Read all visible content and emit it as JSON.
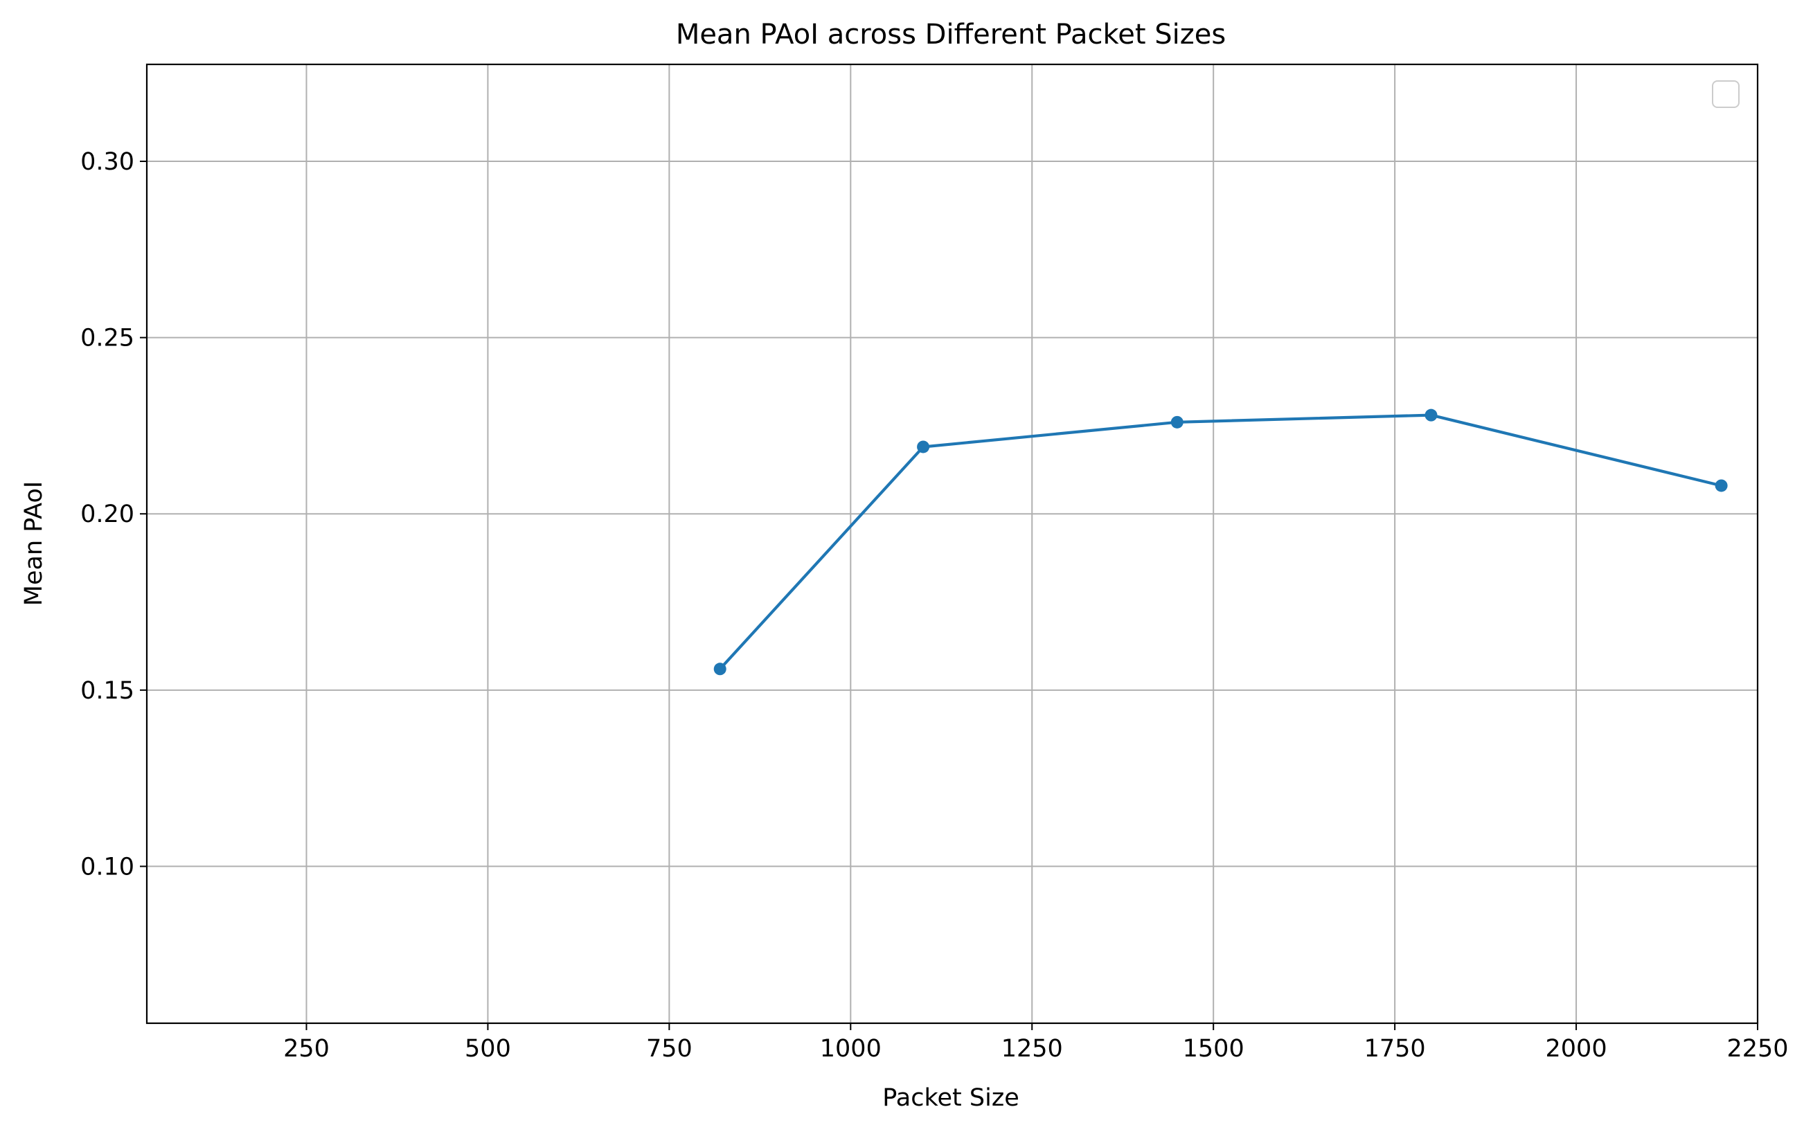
{
  "chart_data": {
    "type": "line",
    "title": "Mean PAoI across Different Packet Sizes",
    "xlabel": "Packet Size",
    "ylabel": "Mean PAoI",
    "xlim": [
      30,
      2250
    ],
    "ylim": [
      0.0555,
      0.3275
    ],
    "xticks": [
      250,
      500,
      750,
      1000,
      1250,
      1500,
      1750,
      2000,
      2250
    ],
    "xtick_labels": [
      "250",
      "500",
      "750",
      "1000",
      "1250",
      "1500",
      "1750",
      "2000",
      "2250"
    ],
    "yticks": [
      0.1,
      0.15,
      0.2,
      0.25,
      0.3
    ],
    "ytick_labels": [
      "0.10",
      "0.15",
      "0.20",
      "0.25",
      "0.30"
    ],
    "grid": true,
    "legend": "top-right, empty",
    "series": [
      {
        "color": "#1f77b4",
        "marker": "circle",
        "x": [
          820,
          1100,
          1450,
          1800,
          2200
        ],
        "y": [
          0.156,
          0.219,
          0.226,
          0.228,
          0.208
        ]
      }
    ]
  }
}
